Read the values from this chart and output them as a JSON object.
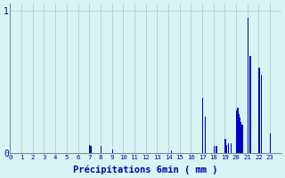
{
  "xlabel": "Précipitations 6min ( mm )",
  "bar_color": "#0000cc",
  "background_color": "#d8f5f5",
  "grid_color": "#c0d0d0",
  "text_color": "#0000aa",
  "axis_color": "#888888",
  "ylim": [
    0,
    1.05
  ],
  "yticks": [
    0,
    1
  ],
  "ytick_labels": [
    "0",
    "1"
  ],
  "n_intervals": 240,
  "values": [
    0,
    0,
    0,
    0,
    0,
    0,
    0,
    0,
    0,
    0,
    0,
    0,
    0,
    0,
    0,
    0,
    0,
    0,
    0,
    0,
    0,
    0,
    0,
    0,
    0,
    0,
    0,
    0,
    0,
    0,
    0,
    0,
    0,
    0,
    0,
    0,
    0,
    0,
    0,
    0,
    0,
    0,
    0,
    0,
    0,
    0,
    0,
    0,
    0,
    0,
    0,
    0,
    0,
    0,
    0,
    0,
    0,
    0,
    0,
    0,
    0,
    0,
    0,
    0,
    0,
    0,
    0,
    0,
    0,
    0,
    0.06,
    0.05,
    0,
    0,
    0,
    0,
    0,
    0,
    0,
    0,
    0.05,
    0,
    0,
    0,
    0,
    0,
    0,
    0,
    0,
    0,
    0.03,
    0,
    0,
    0,
    0,
    0,
    0,
    0,
    0,
    0,
    0,
    0,
    0,
    0,
    0,
    0,
    0,
    0,
    0,
    0,
    0,
    0,
    0,
    0,
    0,
    0,
    0,
    0,
    0,
    0,
    0,
    0,
    0,
    0,
    0,
    0,
    0,
    0,
    0,
    0,
    0,
    0,
    0,
    0,
    0,
    0,
    0,
    0,
    0,
    0,
    0,
    0,
    0.02,
    0,
    0,
    0,
    0,
    0,
    0,
    0,
    0,
    0,
    0,
    0,
    0,
    0,
    0,
    0,
    0,
    0,
    0,
    0,
    0,
    0,
    0,
    0,
    0,
    0,
    0,
    0,
    0.39,
    0,
    0.26,
    0,
    0,
    0,
    0,
    0,
    0,
    0,
    0.05,
    0,
    0.05,
    0,
    0,
    0,
    0,
    0,
    0,
    0,
    0.1,
    0.06,
    0,
    0.07,
    0,
    0.07,
    0,
    0,
    0,
    0,
    0.3,
    0.32,
    0.28,
    0.25,
    0.22,
    0.2,
    0,
    0,
    0,
    0,
    0.95,
    0,
    0.68,
    0,
    0,
    0,
    0,
    0,
    0,
    0,
    0.6,
    0,
    0.55,
    0,
    0,
    0,
    0,
    0,
    0,
    0,
    0.14,
    0,
    0,
    0,
    0,
    0,
    0,
    0,
    0,
    0
  ],
  "hour_tick_positions": [
    0,
    10,
    20,
    30,
    40,
    50,
    60,
    70,
    80,
    90,
    100,
    110,
    120,
    130,
    140,
    150,
    160,
    170,
    180,
    190,
    200,
    210,
    220,
    230
  ],
  "hour_labels": [
    "0",
    "1",
    "2",
    "3",
    "4",
    "5",
    "6",
    "7",
    "8",
    "9",
    "10",
    "11",
    "12",
    "13",
    "14",
    "15",
    "16",
    "17",
    "18",
    "19",
    "20",
    "21",
    "22",
    "23"
  ]
}
